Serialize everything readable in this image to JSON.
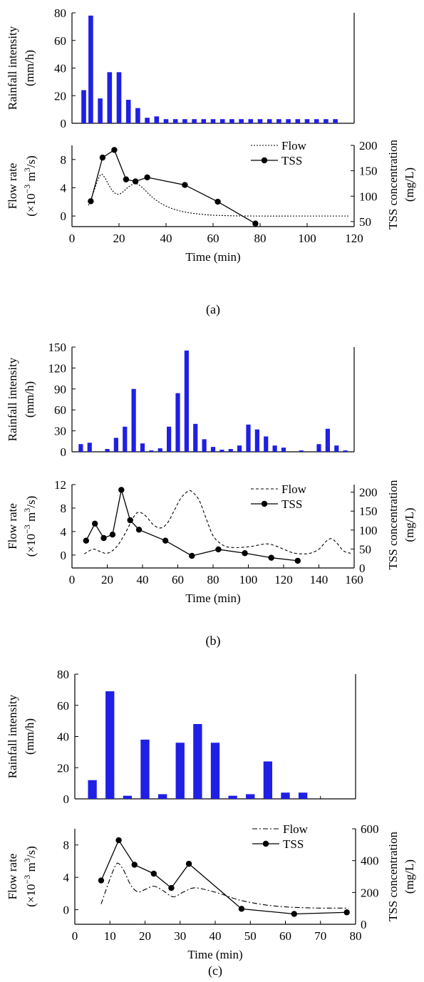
{
  "colors": {
    "bar": "#1f1fe6",
    "line": "#000000"
  },
  "panels": [
    {
      "caption": "(a)",
      "rain": {
        "ylabel_line1": "Rainfall intensity",
        "ylabel_line2": "(mm/h)",
        "ylim": [
          0,
          80
        ],
        "yticks": [
          0,
          20,
          40,
          60,
          80
        ],
        "bar_x": [
          5,
          8,
          12,
          16,
          20,
          24,
          28,
          32,
          36,
          40,
          44,
          48,
          52,
          56,
          60,
          64,
          68,
          72,
          76,
          80,
          84,
          88,
          92,
          96,
          100,
          104,
          108,
          112
        ],
        "values": [
          24,
          78,
          18,
          37,
          37,
          17,
          11,
          4,
          5,
          3,
          3,
          3,
          3,
          3,
          3,
          3,
          3,
          3,
          3,
          3,
          3,
          3,
          3,
          3,
          3,
          3,
          3,
          3
        ]
      },
      "flow": {
        "xlabel": "Time (min)",
        "ylabel_line1": "Flow rate",
        "ylabel_line2": "(×10",
        "ylabel_sup1": "−3",
        "ylabel_line2b": " m",
        "ylabel_sup2": "3",
        "ylabel_line2c": "/s)",
        "y2label_line1": "TSS concentration",
        "y2label_line2": "(mg/L)",
        "xlim": [
          0,
          120
        ],
        "xticks": [
          0,
          20,
          40,
          60,
          80,
          100,
          120
        ],
        "ylim": [
          -1.5,
          10
        ],
        "yticks": [
          0,
          4,
          8
        ],
        "y2lim": [
          40,
          200
        ],
        "y2ticks": [
          50,
          100,
          150,
          200
        ],
        "legend_flow": "Flow",
        "legend_tss": "TSS",
        "flow_style": "dotted",
        "flow_x": [
          7,
          9,
          11,
          12.5,
          14,
          16,
          18,
          20,
          22,
          24,
          27,
          30,
          33,
          36,
          40,
          45,
          50,
          55,
          60,
          70,
          80,
          100,
          118
        ],
        "flow_y": [
          1.5,
          3.2,
          5.1,
          5.9,
          5.4,
          4.2,
          3.3,
          3.1,
          3.5,
          4.1,
          4.6,
          4.0,
          3.0,
          2.2,
          1.4,
          0.8,
          0.45,
          0.25,
          0.12,
          0.02,
          0,
          0,
          0
        ],
        "tss_x": [
          8,
          13,
          18,
          23,
          27,
          32,
          48,
          62,
          78
        ],
        "tss_y": [
          90,
          176,
          191,
          133,
          129,
          137,
          122,
          89,
          46
        ]
      }
    },
    {
      "caption": "(b)",
      "rain": {
        "ylabel_line1": "Rainfall intensity",
        "ylabel_line2": "(mm/h)",
        "ylim": [
          0,
          150
        ],
        "yticks": [
          0,
          30,
          60,
          90,
          120,
          150
        ],
        "bar_x": [
          5,
          10,
          15,
          20,
          25,
          30,
          35,
          40,
          45,
          50,
          55,
          60,
          65,
          70,
          75,
          80,
          85,
          90,
          95,
          100,
          105,
          110,
          115,
          120,
          125,
          130,
          135,
          140,
          145,
          150,
          155
        ],
        "values": [
          11,
          13,
          0,
          4,
          20,
          36,
          90,
          12,
          2,
          5,
          36,
          84,
          145,
          40,
          18,
          7,
          3,
          4,
          9,
          39,
          32,
          22,
          9,
          6,
          0,
          2,
          0,
          11,
          33,
          9,
          2
        ]
      },
      "flow": {
        "xlabel": "Time (min)",
        "ylabel_line1": "Flow rate",
        "ylabel_line2": "(×10",
        "ylabel_sup1": "−3",
        "ylabel_line2b": " m",
        "ylabel_sup2": "3",
        "ylabel_line2c": "/s)",
        "y2label_line1": "TSS concentration",
        "y2label_line2": "(mg/L)",
        "xlim": [
          0,
          160
        ],
        "xticks": [
          0,
          20,
          40,
          60,
          80,
          100,
          120,
          140,
          160
        ],
        "ylim": [
          -2.2,
          12
        ],
        "yticks": [
          0,
          4,
          8,
          12
        ],
        "y2lim": [
          0,
          220
        ],
        "y2ticks": [
          0,
          50,
          100,
          150,
          200
        ],
        "legend_flow": "Flow",
        "legend_tss": "TSS",
        "flow_style": "dashed",
        "flow_x": [
          7,
          12,
          16,
          20,
          25,
          30,
          35,
          38,
          42,
          46,
          50,
          54,
          58,
          62,
          66,
          68,
          72,
          76,
          80,
          85,
          90,
          100,
          110,
          115,
          120,
          125,
          130,
          135,
          140,
          144,
          147,
          150,
          154,
          158
        ],
        "flow_y": [
          0.2,
          1.0,
          0.6,
          0.3,
          1.3,
          3.6,
          6.5,
          7.3,
          6.6,
          5.2,
          4.6,
          5.4,
          7.6,
          9.8,
          10.9,
          10.8,
          9.4,
          6.3,
          3.3,
          1.8,
          1.3,
          1.4,
          1.9,
          1.6,
          1.0,
          0.4,
          0.2,
          0.3,
          1.0,
          2.3,
          2.8,
          2.1,
          0.7,
          0.3
        ],
        "tss_x": [
          8,
          13,
          18,
          23,
          28,
          33,
          38,
          53,
          68,
          83,
          98,
          113,
          128
        ],
        "tss_y": [
          72,
          117,
          79,
          88,
          206,
          126,
          101,
          72,
          32,
          49,
          39,
          27,
          19
        ]
      }
    },
    {
      "caption": "(c)",
      "rain": {
        "ylabel_line1": "Rainfall intensity",
        "ylabel_line2": "(mm/h)",
        "ylim": [
          0,
          80
        ],
        "yticks": [
          0,
          20,
          40,
          60,
          80
        ],
        "bar_x": [
          5,
          10,
          15,
          20,
          25,
          30,
          35,
          40,
          45,
          50,
          55,
          60,
          65,
          70,
          75
        ],
        "values": [
          12,
          69,
          2,
          38,
          3,
          36,
          48,
          36,
          2,
          3,
          24,
          4,
          4,
          0,
          0
        ]
      },
      "flow": {
        "xlabel": "Time (min)",
        "ylabel_line1": "Flow rate",
        "ylabel_line2": "(×10",
        "ylabel_sup1": "−3",
        "ylabel_line2b": " m",
        "ylabel_sup2": "3",
        "ylabel_line2c": "/s)",
        "y2label_line1": "TSS concentration",
        "y2label_line2": "(mg/L)",
        "xlim": [
          0,
          80
        ],
        "xticks": [
          0,
          10,
          20,
          30,
          40,
          50,
          60,
          70,
          80
        ],
        "ylim": [
          -1.8,
          10
        ],
        "yticks": [
          0,
          4,
          8
        ],
        "y2lim": [
          0,
          600
        ],
        "y2ticks": [
          0,
          200,
          400,
          600
        ],
        "legend_flow": "Flow",
        "legend_tss": "TSS",
        "flow_style": "dashdot",
        "flow_x": [
          7.5,
          9.5,
          11.5,
          12.5,
          14,
          16,
          18,
          20,
          22.5,
          25,
          28,
          31,
          34,
          38,
          42,
          46,
          50,
          55,
          60,
          65,
          70,
          75,
          78
        ],
        "flow_y": [
          0.7,
          3.2,
          5.4,
          5.7,
          4.8,
          3.0,
          2.2,
          2.5,
          2.9,
          2.4,
          1.6,
          2.2,
          2.7,
          2.4,
          1.9,
          1.3,
          0.9,
          0.55,
          0.35,
          0.25,
          0.2,
          0.2,
          0.2
        ],
        "tss_x": [
          7.5,
          12.5,
          17,
          22.5,
          27.5,
          32.5,
          47.5,
          62.5,
          77.5
        ],
        "tss_y": [
          275,
          528,
          374,
          318,
          228,
          380,
          97,
          65,
          75
        ]
      }
    }
  ]
}
